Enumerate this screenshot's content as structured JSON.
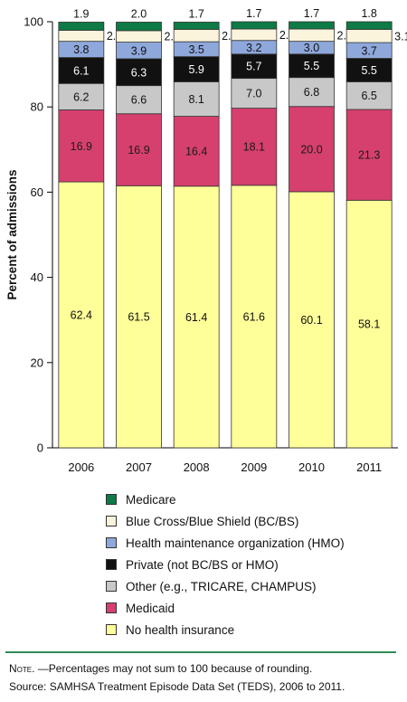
{
  "chart_data": {
    "type": "bar",
    "stacked": true,
    "categories": [
      "2006",
      "2007",
      "2008",
      "2009",
      "2010",
      "2011"
    ],
    "ylabel": "Percent of admissions",
    "ylim": [
      0,
      100
    ],
    "yticks": [
      0,
      20,
      40,
      60,
      80,
      100
    ],
    "grid": false,
    "legend_position": "bottom",
    "series": [
      {
        "name": "No health insurance",
        "color": "#ffff99",
        "values": [
          62.4,
          61.5,
          61.4,
          61.6,
          60.1,
          58.1
        ]
      },
      {
        "name": "Medicaid",
        "color": "#d6406e",
        "values": [
          16.9,
          16.9,
          16.4,
          18.1,
          20.0,
          21.3
        ]
      },
      {
        "name": "Other (e.g., TRICARE, CHAMPUS)",
        "color": "#c8c8c8",
        "values": [
          6.2,
          6.6,
          8.1,
          7.0,
          6.8,
          6.5
        ]
      },
      {
        "name": "Private (not BC/BS or HMO)",
        "color": "#111111",
        "values": [
          6.1,
          6.3,
          5.9,
          5.7,
          5.5,
          5.5
        ]
      },
      {
        "name": "Health maintenance organization (HMO)",
        "color": "#8fa8dc",
        "values": [
          3.8,
          3.9,
          3.5,
          3.2,
          3.0,
          3.7
        ]
      },
      {
        "name": "Blue Cross/Blue Shield (BC/BS)",
        "color": "#fbf4dc",
        "values": [
          2.6,
          2.7,
          2.9,
          2.7,
          2.9,
          3.1
        ]
      },
      {
        "name": "Medicare",
        "color": "#0e7a45",
        "values": [
          1.9,
          2.0,
          1.7,
          1.7,
          1.7,
          1.8
        ]
      }
    ],
    "series_labels": [
      [
        "62.4",
        "61.5",
        "61.4",
        "61.6",
        "60.1",
        "58.1"
      ],
      [
        "16.9",
        "16.9",
        "16.4",
        "18.1",
        "20.0",
        "21.3"
      ],
      [
        "6.2",
        "6.6",
        "8.1",
        "7.0",
        "6.8",
        "6.5"
      ],
      [
        "6.1",
        "6.3",
        "5.9",
        "5.7",
        "5.5",
        "5.5"
      ],
      [
        "3.8",
        "3.9",
        "3.5",
        "3.2",
        "3.0",
        "3.7"
      ],
      [
        "2.6",
        "2.7",
        "2.9",
        "2.7",
        "2.9",
        "3.1"
      ],
      [
        "1.9",
        "2.0",
        "1.7",
        "1.7",
        "1.7",
        "1.8"
      ]
    ]
  },
  "legend": [
    {
      "label": "Medicare",
      "color": "#0e7a45"
    },
    {
      "label": "Blue Cross/Blue Shield (BC/BS)",
      "color": "#fbf4dc"
    },
    {
      "label": "Health maintenance organization (HMO)",
      "color": "#8fa8dc"
    },
    {
      "label": "Private (not BC/BS or HMO)",
      "color": "#111111"
    },
    {
      "label": "Other (e.g., TRICARE, CHAMPUS)",
      "color": "#c8c8c8"
    },
    {
      "label": "Medicaid",
      "color": "#d6406e"
    },
    {
      "label": "No health insurance",
      "color": "#ffff99"
    }
  ],
  "footer": {
    "note_lead": "Note.",
    "note_text": " —Percentages may not sum to 100 because of rounding.",
    "source": "Source: SAMHSA Treatment Episode Data Set (TEDS), 2006 to 2011.",
    "rule_color": "#2e8b57"
  }
}
